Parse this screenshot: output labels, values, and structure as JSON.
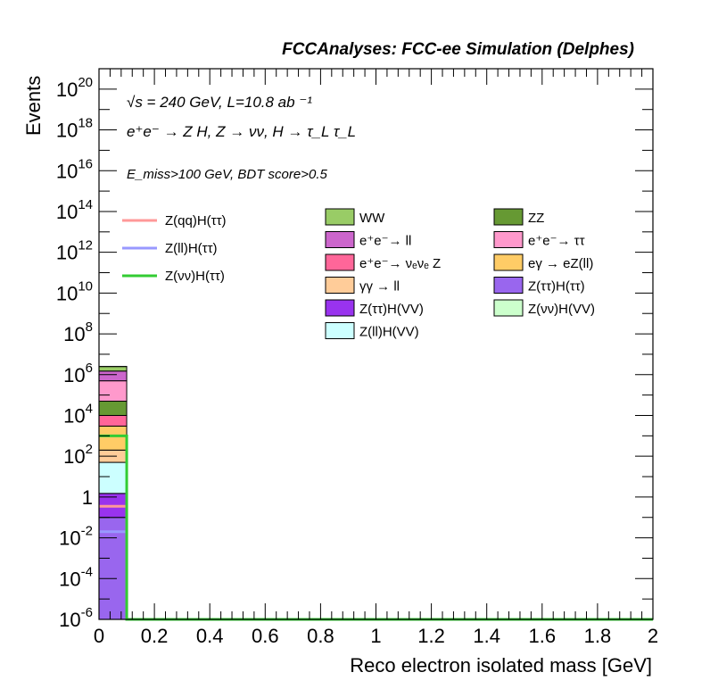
{
  "chart_data": {
    "type": "bar",
    "title": "FCCAnalyses: FCC-ee Simulation (Delphes)",
    "xlabel": "Reco electron isolated mass [GeV]",
    "ylabel": "Events",
    "xlim": [
      0,
      2
    ],
    "ylim": [
      1e-06,
      1e+21
    ],
    "log_y": true,
    "x_ticks": [
      "0",
      "0.2",
      "0.4",
      "0.6",
      "0.8",
      "1",
      "1.2",
      "1.4",
      "1.6",
      "1.8",
      "2"
    ],
    "y_ticks": [
      {
        "base": "10",
        "exp": "-6"
      },
      {
        "base": "10",
        "exp": "-4"
      },
      {
        "base": "10",
        "exp": "-2"
      },
      {
        "base": "1",
        "exp": ""
      },
      {
        "base": "10",
        "exp": "2"
      },
      {
        "base": "10",
        "exp": "4"
      },
      {
        "base": "10",
        "exp": "6"
      },
      {
        "base": "10",
        "exp": "8"
      },
      {
        "base": "10",
        "exp": "10"
      },
      {
        "base": "10",
        "exp": "12"
      },
      {
        "base": "10",
        "exp": "14"
      },
      {
        "base": "10",
        "exp": "16"
      },
      {
        "base": "10",
        "exp": "18"
      },
      {
        "base": "10",
        "exp": "20"
      }
    ],
    "bin_edges": [
      0,
      0.1
    ],
    "stack": [
      {
        "name": "Z(ττ)H(ττ)",
        "color": "#9966ee",
        "value": 0.1
      },
      {
        "name": "Z(ττ)H(VV)",
        "color": "#9933ee",
        "value": 1.5
      },
      {
        "name": "Z(ll)H(VV)",
        "color": "#ccffff",
        "value": 50
      },
      {
        "name": "γγ → ll",
        "color": "#ffcc99",
        "value": 200
      },
      {
        "name": "eγ → eZ(ll)",
        "color": "#ffcc66",
        "value": 3000
      },
      {
        "name": "e⁺e⁻ → νₑνₑ Z",
        "color": "#ff6699",
        "value": 10000
      },
      {
        "name": "ZZ",
        "color": "#669933",
        "value": 50000
      },
      {
        "name": "e⁺e⁻ → ττ",
        "color": "#ff99cc",
        "value": 500000
      },
      {
        "name": "e⁺e⁻ → ll",
        "color": "#cc66cc",
        "value": 1500000
      },
      {
        "name": "WW",
        "color": "#99cc66",
        "value": 2500000
      },
      {
        "name": "Z(νν)H(VV)",
        "color": "#ccffcc",
        "value": 2510000
      }
    ],
    "signal_lines": [
      {
        "name": "Z(qq)H(ττ)",
        "color": "#ff9999",
        "value": 0.35
      },
      {
        "name": "Z(ll)H(ττ)",
        "color": "#9999ff",
        "value": 0.02
      },
      {
        "name": "Z(νν)H(ττ)",
        "color": "#33cc33",
        "value": 1000
      }
    ],
    "legend_signals": [
      {
        "label": "Z(qq)H(ττ)",
        "color": "#ff9999"
      },
      {
        "label": "Z(ll)H(ττ)",
        "color": "#9999ff"
      },
      {
        "label": "Z(νν)H(ττ)",
        "color": "#33cc33"
      }
    ],
    "legend_backgrounds": [
      {
        "label": "WW",
        "color": "#99cc66"
      },
      {
        "label": "ZZ",
        "color": "#669933"
      },
      {
        "label": "e⁺e⁻→ ll",
        "color": "#cc66cc"
      },
      {
        "label": "e⁺e⁻→ ττ",
        "color": "#ff99cc"
      },
      {
        "label": "e⁺e⁻→ νₑνₑ Z",
        "color": "#ff6699"
      },
      {
        "label": "eγ → eZ(ll)",
        "color": "#ffcc66"
      },
      {
        "label": "γγ → ll",
        "color": "#ffcc99"
      },
      {
        "label": "Z(ττ)H(ττ)",
        "color": "#9966ee"
      },
      {
        "label": "Z(ττ)H(VV)",
        "color": "#9933ee"
      },
      {
        "label": "Z(νν)H(VV)",
        "color": "#ccffcc"
      },
      {
        "label": "Z(ll)H(VV)",
        "color": "#ccffff"
      }
    ],
    "annotations": {
      "line1": "√s = 240 GeV, L=10.8 ab ⁻¹",
      "line2": "e⁺e⁻ → Z H, Z → νν, H → τ_L τ_L",
      "line3": "E_miss>100 GeV, BDT score>0.5"
    }
  }
}
